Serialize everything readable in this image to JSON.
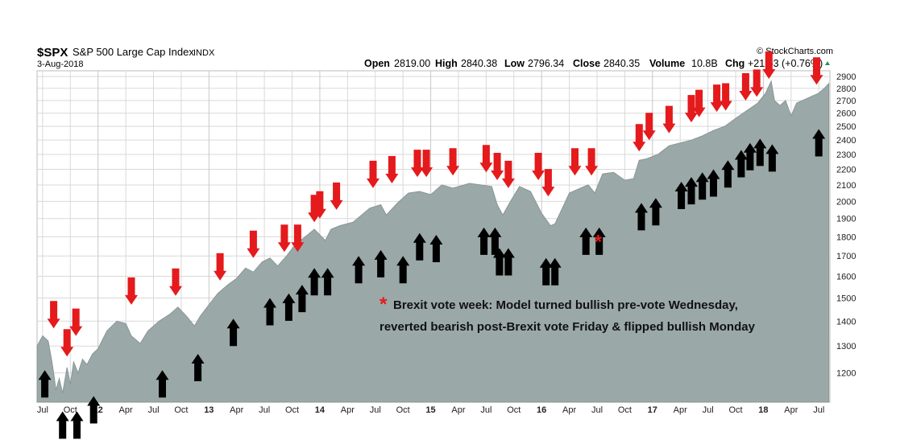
{
  "header": {
    "symbol": "$SPX",
    "name": "S&P 500 Large Cap Index",
    "exchange": "INDX",
    "date": "3-Aug-2018",
    "watermark": "© StockCharts.com",
    "quote": {
      "open_label": "Open",
      "open": "2819.00",
      "high_label": "High",
      "high": "2840.38",
      "low_label": "Low",
      "low": "2796.34",
      "close_label": "Close",
      "close": "2840.35",
      "volume_label": "Volume",
      "volume": "10.8B",
      "chg_label": "Chg",
      "chg": "+21.53 (+0.76%)"
    }
  },
  "annotation": {
    "marker": "*",
    "line1": "Brexit vote week: Model turned bullish pre-vote Wednesday,",
    "line2": "reverted bearish post-Brexit vote Friday & flipped bullish Monday"
  },
  "colors": {
    "area_fill": "#9ba8a8",
    "area_stroke": "#8a9696",
    "grid": "#d9d9d9",
    "sell_arrow": "#e41a1c",
    "buy_arrow": "#000000",
    "up_triangle": "#2e8b57"
  },
  "chart_data": {
    "type": "area",
    "series": [
      {
        "x": [
          2011.45,
          2011.5,
          2011.55,
          2011.58,
          2011.6,
          2011.62,
          2011.65,
          2011.68,
          2011.72,
          2011.75,
          2011.78,
          2011.82,
          2011.86,
          2011.9,
          2011.95,
          2012.0,
          2012.08,
          2012.17,
          2012.25,
          2012.3,
          2012.38,
          2012.45,
          2012.55,
          2012.65,
          2012.72,
          2012.8,
          2012.87,
          2012.92,
          2013.0,
          2013.08,
          2013.17,
          2013.25,
          2013.33,
          2013.4,
          2013.48,
          2013.55,
          2013.62,
          2013.7,
          2013.78,
          2013.87,
          2013.95,
          2014.05,
          2014.1,
          2014.18,
          2014.3,
          2014.45,
          2014.55,
          2014.6,
          2014.7,
          2014.8,
          2014.9,
          2015.0,
          2015.1,
          2015.2,
          2015.35,
          2015.45,
          2015.55,
          2015.6,
          2015.65,
          2015.72,
          2015.8,
          2015.9,
          2016.0,
          2016.08,
          2016.12,
          2016.18,
          2016.25,
          2016.35,
          2016.42,
          2016.48,
          2016.55,
          2016.65,
          2016.75,
          2016.83,
          2016.88,
          2016.95,
          2017.05,
          2017.15,
          2017.25,
          2017.35,
          2017.45,
          2017.55,
          2017.65,
          2017.75,
          2017.85,
          2017.95,
          2018.02,
          2018.07,
          2018.1,
          2018.15,
          2018.2,
          2018.25,
          2018.3,
          2018.4,
          2018.5,
          2018.55,
          2018.59
        ],
        "values": [
          1300,
          1340,
          1320,
          1250,
          1200,
          1140,
          1180,
          1130,
          1220,
          1160,
          1240,
          1200,
          1250,
          1230,
          1270,
          1290,
          1360,
          1400,
          1390,
          1340,
          1310,
          1360,
          1400,
          1430,
          1460,
          1420,
          1380,
          1420,
          1470,
          1520,
          1560,
          1590,
          1640,
          1620,
          1670,
          1690,
          1650,
          1700,
          1760,
          1800,
          1840,
          1780,
          1840,
          1860,
          1880,
          1960,
          1980,
          1920,
          1990,
          2050,
          2060,
          2040,
          2100,
          2080,
          2110,
          2100,
          2090,
          1980,
          1920,
          2000,
          2090,
          2060,
          1930,
          1860,
          1870,
          1950,
          2050,
          2080,
          2100,
          2050,
          2170,
          2180,
          2130,
          2140,
          2260,
          2270,
          2300,
          2360,
          2380,
          2400,
          2430,
          2470,
          2500,
          2560,
          2620,
          2680,
          2760,
          2860,
          2700,
          2660,
          2700,
          2580,
          2680,
          2720,
          2760,
          2800,
          2840
        ]
      }
    ],
    "x_ticks": [
      {
        "x": 2011.5,
        "label": "Jul"
      },
      {
        "x": 2011.75,
        "label": "Oct"
      },
      {
        "x": 2012.0,
        "label": "12"
      },
      {
        "x": 2012.25,
        "label": "Apr"
      },
      {
        "x": 2012.5,
        "label": "Jul"
      },
      {
        "x": 2012.75,
        "label": "Oct"
      },
      {
        "x": 2013.0,
        "label": "13"
      },
      {
        "x": 2013.25,
        "label": "Apr"
      },
      {
        "x": 2013.5,
        "label": "Jul"
      },
      {
        "x": 2013.75,
        "label": "Oct"
      },
      {
        "x": 2014.0,
        "label": "14"
      },
      {
        "x": 2014.25,
        "label": "Apr"
      },
      {
        "x": 2014.5,
        "label": "Jul"
      },
      {
        "x": 2014.75,
        "label": "Oct"
      },
      {
        "x": 2015.0,
        "label": "15"
      },
      {
        "x": 2015.25,
        "label": "Apr"
      },
      {
        "x": 2015.5,
        "label": "Jul"
      },
      {
        "x": 2015.75,
        "label": "Oct"
      },
      {
        "x": 2016.0,
        "label": "16"
      },
      {
        "x": 2016.25,
        "label": "Apr"
      },
      {
        "x": 2016.5,
        "label": "Jul"
      },
      {
        "x": 2016.75,
        "label": "Oct"
      },
      {
        "x": 2017.0,
        "label": "17"
      },
      {
        "x": 2017.25,
        "label": "Apr"
      },
      {
        "x": 2017.5,
        "label": "Jul"
      },
      {
        "x": 2017.75,
        "label": "Oct"
      },
      {
        "x": 2018.0,
        "label": "18"
      },
      {
        "x": 2018.25,
        "label": "Apr"
      },
      {
        "x": 2018.5,
        "label": "Jul"
      }
    ],
    "y_ticks": [
      1200,
      1300,
      1400,
      1500,
      1600,
      1700,
      1800,
      1900,
      2000,
      2100,
      2200,
      2300,
      2400,
      2500,
      2600,
      2700,
      2800,
      2900
    ],
    "y_scale": "log",
    "ylim": [
      1100,
      2950
    ],
    "xlim": [
      2011.45,
      2018.6
    ],
    "grid": "on",
    "signals": {
      "sell": [
        {
          "x": 2011.6,
          "y": 1370
        },
        {
          "x": 2011.72,
          "y": 1260
        },
        {
          "x": 2011.8,
          "y": 1340
        },
        {
          "x": 2012.3,
          "y": 1470
        },
        {
          "x": 2012.7,
          "y": 1510
        },
        {
          "x": 2013.1,
          "y": 1580
        },
        {
          "x": 2013.4,
          "y": 1690
        },
        {
          "x": 2013.68,
          "y": 1720
        },
        {
          "x": 2013.8,
          "y": 1720
        },
        {
          "x": 2013.95,
          "y": 1880
        },
        {
          "x": 2014.0,
          "y": 1900
        },
        {
          "x": 2014.15,
          "y": 1950
        },
        {
          "x": 2014.48,
          "y": 2080
        },
        {
          "x": 2014.65,
          "y": 2110
        },
        {
          "x": 2014.88,
          "y": 2150
        },
        {
          "x": 2014.96,
          "y": 2150
        },
        {
          "x": 2015.2,
          "y": 2160
        },
        {
          "x": 2015.5,
          "y": 2180
        },
        {
          "x": 2015.6,
          "y": 2130
        },
        {
          "x": 2015.7,
          "y": 2080
        },
        {
          "x": 2015.97,
          "y": 2130
        },
        {
          "x": 2016.06,
          "y": 2030
        },
        {
          "x": 2016.3,
          "y": 2160
        },
        {
          "x": 2016.45,
          "y": 2160
        },
        {
          "x": 2016.88,
          "y": 2320
        },
        {
          "x": 2016.97,
          "y": 2400
        },
        {
          "x": 2017.15,
          "y": 2450
        },
        {
          "x": 2017.35,
          "y": 2530
        },
        {
          "x": 2017.42,
          "y": 2570
        },
        {
          "x": 2017.58,
          "y": 2610
        },
        {
          "x": 2017.66,
          "y": 2620
        },
        {
          "x": 2017.84,
          "y": 2700
        },
        {
          "x": 2017.94,
          "y": 2730
        },
        {
          "x": 2018.05,
          "y": 2880
        },
        {
          "x": 2018.48,
          "y": 2830
        }
      ],
      "buy": [
        {
          "x": 2011.52,
          "y": 1210
        },
        {
          "x": 2011.68,
          "y": 1070
        },
        {
          "x": 2011.81,
          "y": 1070
        },
        {
          "x": 2011.96,
          "y": 1120
        },
        {
          "x": 2012.58,
          "y": 1210
        },
        {
          "x": 2012.9,
          "y": 1270
        },
        {
          "x": 2013.22,
          "y": 1410
        },
        {
          "x": 2013.55,
          "y": 1500
        },
        {
          "x": 2013.72,
          "y": 1520
        },
        {
          "x": 2013.84,
          "y": 1560
        },
        {
          "x": 2013.95,
          "y": 1640
        },
        {
          "x": 2014.07,
          "y": 1640
        },
        {
          "x": 2014.35,
          "y": 1700
        },
        {
          "x": 2014.55,
          "y": 1730
        },
        {
          "x": 2014.75,
          "y": 1700
        },
        {
          "x": 2014.9,
          "y": 1820
        },
        {
          "x": 2015.05,
          "y": 1810
        },
        {
          "x": 2015.48,
          "y": 1850
        },
        {
          "x": 2015.58,
          "y": 1850
        },
        {
          "x": 2015.62,
          "y": 1740
        },
        {
          "x": 2015.7,
          "y": 1740
        },
        {
          "x": 2016.04,
          "y": 1690
        },
        {
          "x": 2016.12,
          "y": 1690
        },
        {
          "x": 2016.4,
          "y": 1850
        },
        {
          "x": 2016.52,
          "y": 1850
        },
        {
          "x": 2016.9,
          "y": 1990
        },
        {
          "x": 2017.03,
          "y": 2020
        },
        {
          "x": 2017.26,
          "y": 2120
        },
        {
          "x": 2017.35,
          "y": 2150
        },
        {
          "x": 2017.45,
          "y": 2180
        },
        {
          "x": 2017.55,
          "y": 2200
        },
        {
          "x": 2017.68,
          "y": 2260
        },
        {
          "x": 2017.8,
          "y": 2330
        },
        {
          "x": 2017.88,
          "y": 2380
        },
        {
          "x": 2017.97,
          "y": 2410
        },
        {
          "x": 2018.08,
          "y": 2370
        },
        {
          "x": 2018.5,
          "y": 2480
        }
      ],
      "brexit_marker": {
        "x": 2016.51,
        "y": 1790
      }
    }
  }
}
